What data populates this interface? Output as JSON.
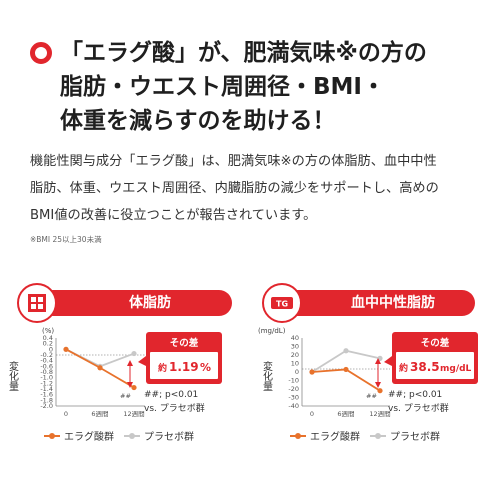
{
  "headline": {
    "line1": "「エラグ酸」が、肥満気味※の方の",
    "line2": "脂肪・ウエスト周囲径・BMI・",
    "line3": "体重を減らすのを助ける！"
  },
  "body": {
    "line1": "機能性関与成分「エラグ酸」は、肥満気味※の方の体脂肪、血中中性",
    "line2": "脂肪、体重、ウエスト周囲径、内臓脂肪の減少をサポートし、高めの",
    "line3": "BMI値の改善に役立つことが報告されています。"
  },
  "note": "※BMI 25以上30未満",
  "colors": {
    "accent": "#e1262d",
    "treatment": "#e8722c",
    "placebo": "#c8c8c8"
  },
  "icons": {
    "left": "body-fat-icon",
    "right": "triglyceride-icon",
    "headline": "red-ring-icon"
  },
  "charts": {
    "left": {
      "banner": "体脂肪",
      "unit": "(%)",
      "ylabel": "変化量",
      "yticks": [
        "0.4",
        "0.2",
        "0",
        "-0.2",
        "-0.4",
        "-0.6",
        "-0.8",
        "-1.0",
        "-1.2",
        "-1.4",
        "-1.6",
        "-1.8",
        "-2.0"
      ],
      "xticks": [
        "0",
        "6週間",
        "12週間"
      ],
      "callout_label": "その差",
      "callout_prefix": "約",
      "callout_value": "1.19",
      "callout_unit": "%",
      "sig_mark": "##",
      "stat": "##; p<0.01",
      "stat2": "vs. プラセボ群"
    },
    "right": {
      "banner": "血中中性脂肪",
      "badge_text": "TG",
      "unit": "(mg/dL)",
      "ylabel": "変化量",
      "yticks": [
        "40",
        "30",
        "20",
        "10",
        "0",
        "-10",
        "-20",
        "-30",
        "-40"
      ],
      "xticks": [
        "0",
        "6週間",
        "12週間"
      ],
      "callout_label": "その差",
      "callout_prefix": "約",
      "callout_value": "38.5",
      "callout_unit": "mg/dL",
      "sig_mark": "##",
      "stat": "##; p<0.01",
      "stat2": "vs. プラセボ群"
    }
  },
  "legend": {
    "treatment": "エラグ酸群",
    "placebo": "プラセボ群"
  },
  "chart_data": [
    {
      "type": "line",
      "ylabel": "変化量",
      "unit": "%",
      "categories": [
        "0",
        "6週間",
        "12週間"
      ],
      "ylim": [
        -2.0,
        0.4
      ],
      "series": [
        {
          "name": "エラグ酸群",
          "values": [
            0,
            -0.65,
            -1.35
          ]
        },
        {
          "name": "プラセボ群",
          "values": [
            0,
            -0.6,
            -0.15
          ]
        }
      ]
    },
    {
      "type": "line",
      "ylabel": "変化量",
      "unit": "mg/dL",
      "categories": [
        "0",
        "6週間",
        "12週間"
      ],
      "ylim": [
        -40,
        40
      ],
      "series": [
        {
          "name": "エラグ酸群",
          "values": [
            0,
            3,
            -22
          ]
        },
        {
          "name": "プラセボ群",
          "values": [
            0,
            25,
            16
          ]
        }
      ]
    }
  ]
}
